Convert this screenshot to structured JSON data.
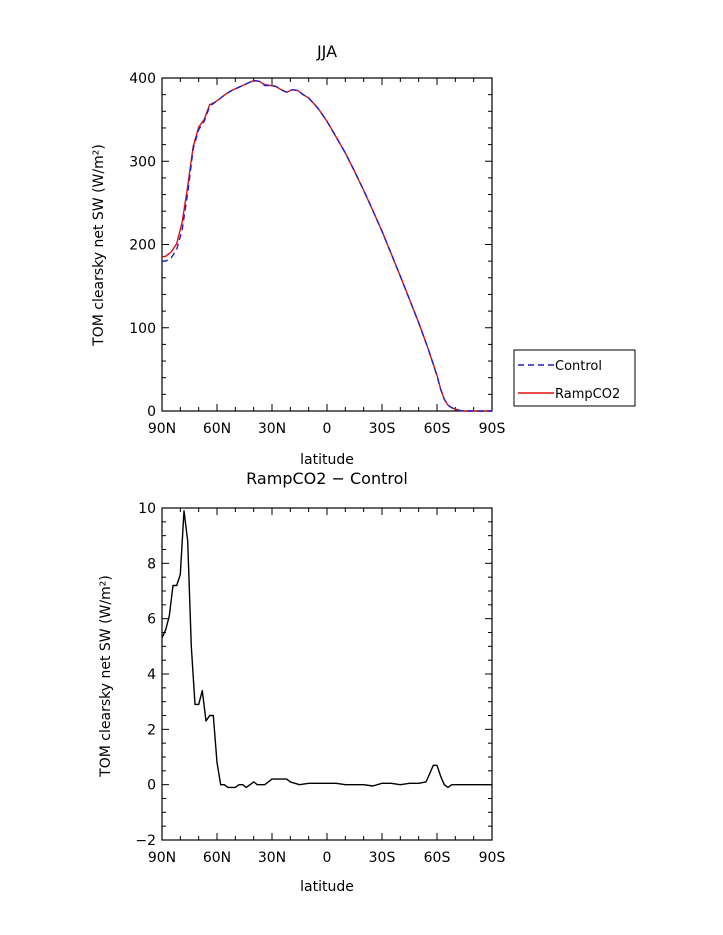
{
  "chart_data": [
    {
      "type": "line",
      "title": "JJA",
      "xlabel": "latitude",
      "ylabel": "TOM clearsky net SW (W/m²)",
      "xlim": [
        90,
        -90
      ],
      "ylim": [
        0,
        400
      ],
      "x_ticks": [
        90,
        60,
        30,
        0,
        -30,
        -60,
        -90
      ],
      "x_tick_labels": [
        "90N",
        "60N",
        "30N",
        "0",
        "30S",
        "60S",
        "90S"
      ],
      "y_ticks": [
        0,
        100,
        200,
        300,
        400
      ],
      "y_tick_labels": [
        "0",
        "100",
        "200",
        "300",
        "400"
      ],
      "legend_position": "right",
      "colors": {
        "Control": "#1f1fd0",
        "RampCO2": "#e01010"
      },
      "series": [
        {
          "name": "Control",
          "style": "dashed",
          "x": [
            90,
            88,
            85,
            82,
            79,
            76,
            73,
            70,
            67,
            64,
            61,
            58,
            55,
            52,
            49,
            46,
            43,
            40,
            37,
            34,
            31,
            28,
            25,
            22,
            19,
            16,
            13,
            10,
            5,
            0,
            -5,
            -10,
            -15,
            -20,
            -25,
            -30,
            -35,
            -40,
            -45,
            -50,
            -55,
            -58,
            -60,
            -62,
            -64,
            -66,
            -68,
            -70,
            -72,
            -74,
            -76,
            -80,
            -85,
            -90
          ],
          "y": [
            180,
            180,
            184,
            194,
            218,
            262,
            315,
            338,
            348,
            366,
            371,
            376,
            381,
            385,
            388,
            391,
            394,
            397,
            396,
            391,
            391,
            390,
            386,
            383,
            386,
            385,
            380,
            376,
            364,
            348,
            329,
            310,
            288,
            265,
            241,
            216,
            189,
            162,
            134,
            106,
            76,
            56,
            42,
            26,
            14,
            7,
            4,
            2,
            1,
            0,
            0,
            0,
            0,
            0
          ]
        },
        {
          "name": "RampCO2",
          "style": "solid",
          "x": [
            90,
            88,
            85,
            82,
            79,
            76,
            73,
            70,
            67,
            64,
            61,
            58,
            55,
            52,
            49,
            46,
            43,
            40,
            37,
            34,
            31,
            28,
            25,
            22,
            19,
            16,
            13,
            10,
            5,
            0,
            -5,
            -10,
            -15,
            -20,
            -25,
            -30,
            -35,
            -40,
            -45,
            -50,
            -55,
            -58,
            -60,
            -62,
            -64,
            -66,
            -68,
            -70,
            -72,
            -74,
            -76,
            -80,
            -85,
            -90
          ],
          "y": [
            185,
            186,
            191,
            201,
            227,
            270,
            318,
            341,
            350,
            368,
            371,
            376,
            381,
            385,
            388,
            391,
            394,
            397,
            396,
            392,
            391,
            390,
            386,
            383,
            386,
            385,
            380,
            376,
            364,
            348,
            329,
            310,
            288,
            265,
            241,
            216,
            189,
            162,
            134,
            106,
            76,
            56,
            43,
            26,
            14,
            7,
            4,
            2,
            1,
            0,
            0,
            0,
            0,
            0
          ]
        }
      ]
    },
    {
      "type": "line",
      "title": "RampCO2 − Control",
      "xlabel": "latitude",
      "ylabel": "TOM clearsky net SW (W/m²)",
      "xlim": [
        90,
        -90
      ],
      "ylim": [
        -2,
        10
      ],
      "x_ticks": [
        90,
        60,
        30,
        0,
        -30,
        -60,
        -90
      ],
      "x_tick_labels": [
        "90N",
        "60N",
        "30N",
        "0",
        "30S",
        "60S",
        "90S"
      ],
      "y_ticks": [
        -2,
        0,
        2,
        4,
        6,
        8,
        10
      ],
      "y_tick_labels": [
        "−2",
        "0",
        "2",
        "4",
        "6",
        "8",
        "10"
      ],
      "colors": {
        "line": "#000000"
      },
      "series": [
        {
          "style": "solid",
          "x": [
            90,
            88,
            86,
            84,
            82,
            80,
            78,
            76,
            74,
            72,
            70,
            68,
            66,
            64,
            62,
            60,
            58,
            56,
            54,
            52,
            50,
            48,
            46,
            44,
            42,
            40,
            38,
            36,
            34,
            32,
            30,
            28,
            26,
            24,
            22,
            20,
            15,
            10,
            5,
            0,
            -5,
            -10,
            -15,
            -20,
            -25,
            -30,
            -35,
            -40,
            -45,
            -50,
            -54,
            -56,
            -58,
            -60,
            -62,
            -64,
            -66,
            -68,
            -70,
            -75,
            -80,
            -85,
            -90
          ],
          "y": [
            5.3,
            5.6,
            6.1,
            7.2,
            7.2,
            7.6,
            9.9,
            8.8,
            5.0,
            2.9,
            2.9,
            3.4,
            2.3,
            2.5,
            2.5,
            0.8,
            0.0,
            0.0,
            -0.1,
            -0.1,
            -0.1,
            0.0,
            0.0,
            -0.1,
            0.0,
            0.1,
            0.0,
            0.0,
            0.0,
            0.1,
            0.2,
            0.2,
            0.2,
            0.2,
            0.2,
            0.1,
            0.0,
            0.05,
            0.05,
            0.05,
            0.05,
            0.0,
            0.0,
            0.0,
            -0.05,
            0.05,
            0.05,
            0.0,
            0.05,
            0.05,
            0.1,
            0.4,
            0.7,
            0.7,
            0.3,
            0.0,
            -0.1,
            0.0,
            0.0,
            0.0,
            0.0,
            0.0,
            0.0
          ]
        }
      ]
    }
  ]
}
